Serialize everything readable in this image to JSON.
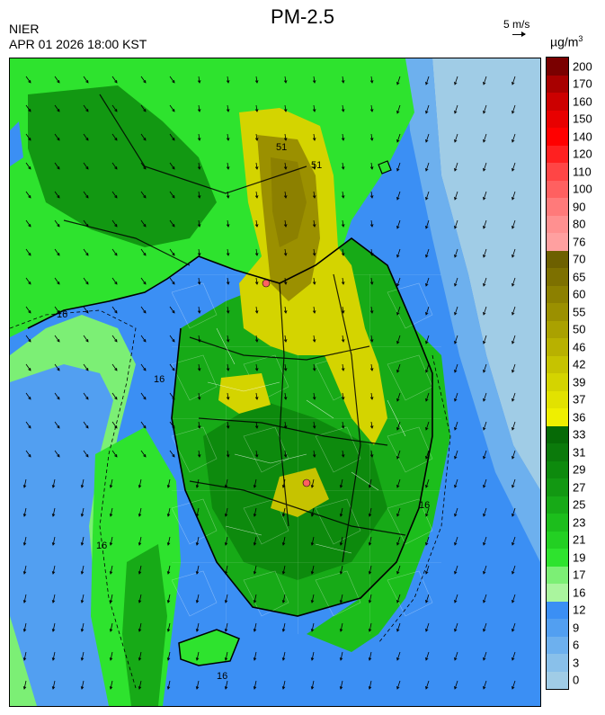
{
  "title": "PM-2.5",
  "source": "NIER",
  "timestamp": "APR 01 2026 18:00 KST",
  "wind_scale": {
    "label": "5 m/s",
    "icon": "arrow-right-icon"
  },
  "unit": {
    "base": "µg/m",
    "exp": "3"
  },
  "contour_labels": [
    "16",
    "16",
    "16",
    "16",
    "16",
    "51",
    "51"
  ],
  "legend": [
    {
      "label": "0",
      "color": "#a0cce6"
    },
    {
      "label": "3",
      "color": "#89c0ea"
    },
    {
      "label": "6",
      "color": "#6db0ee"
    },
    {
      "label": "9",
      "color": "#529ff1"
    },
    {
      "label": "12",
      "color": "#3b8ff4"
    },
    {
      "label": "16",
      "color": "#aaf59e"
    },
    {
      "label": "17",
      "color": "#7cef75"
    },
    {
      "label": "19",
      "color": "#2ee32e"
    },
    {
      "label": "21",
      "color": "#23d023"
    },
    {
      "label": "23",
      "color": "#1cbe1c"
    },
    {
      "label": "25",
      "color": "#17aa17"
    },
    {
      "label": "27",
      "color": "#129812"
    },
    {
      "label": "29",
      "color": "#0d8a0d"
    },
    {
      "label": "31",
      "color": "#0b7a0b"
    },
    {
      "label": "33",
      "color": "#066a06"
    },
    {
      "label": "36",
      "color": "#efef00"
    },
    {
      "label": "37",
      "color": "#e2e200"
    },
    {
      "label": "39",
      "color": "#d4d400"
    },
    {
      "label": "42",
      "color": "#c6c300"
    },
    {
      "label": "46",
      "color": "#b8b100"
    },
    {
      "label": "50",
      "color": "#aaa100"
    },
    {
      "label": "55",
      "color": "#9b9000"
    },
    {
      "label": "60",
      "color": "#8c8000"
    },
    {
      "label": "65",
      "color": "#7d7000"
    },
    {
      "label": "70",
      "color": "#6d6000"
    },
    {
      "label": "76",
      "color": "#ffa0a0"
    },
    {
      "label": "80",
      "color": "#ff9090"
    },
    {
      "label": "90",
      "color": "#ff7a7a"
    },
    {
      "label": "100",
      "color": "#ff6060"
    },
    {
      "label": "110",
      "color": "#ff4545"
    },
    {
      "label": "120",
      "color": "#ff2020"
    },
    {
      "label": "140",
      "color": "#ff0000"
    },
    {
      "label": "150",
      "color": "#e80000"
    },
    {
      "label": "160",
      "color": "#cc0000"
    },
    {
      "label": "170",
      "color": "#a80000"
    },
    {
      "label": "200",
      "color": "#7a0000"
    }
  ]
}
